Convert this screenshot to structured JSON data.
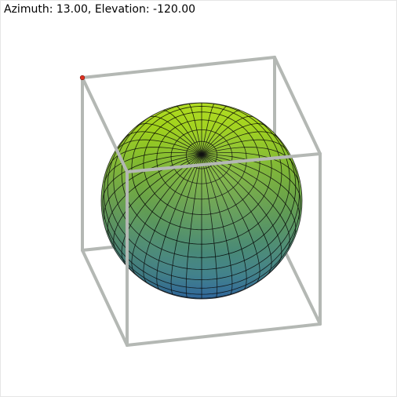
{
  "view": {
    "label": "Azimuth: 13.00, Elevation: -120.00",
    "azimuth": 13.0,
    "elevation": -120.0
  },
  "scene": {
    "object": "sphere",
    "colormap": "viridis",
    "box_color": "#b4b8b4",
    "grid_color": "#000000",
    "pole_marker_color": "#e03020"
  }
}
